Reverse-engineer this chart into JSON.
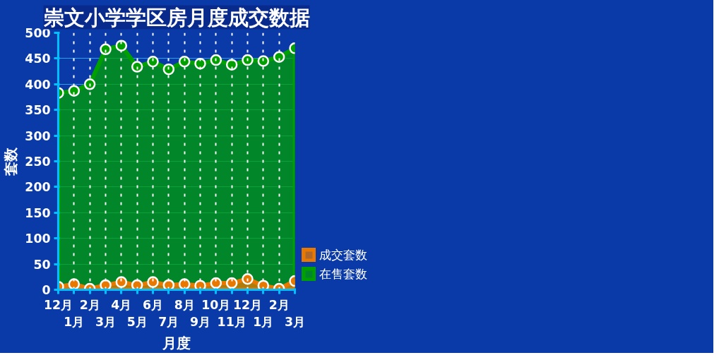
{
  "chart_data": {
    "type": "area",
    "title": "崇文小学学区房月度成交数据",
    "xlabel": "月度",
    "ylabel": "套数",
    "categories": [
      "12月",
      "1月",
      "2月",
      "3月",
      "4月",
      "5月",
      "6月",
      "7月",
      "8月",
      "9月",
      "10月",
      "11月",
      "12月",
      "1月",
      "2月",
      "3月"
    ],
    "series": [
      {
        "name": "成交套数",
        "color": "#e87800",
        "values": [
          6,
          11,
          2,
          9,
          15,
          9,
          15,
          9,
          11,
          8,
          13,
          13,
          21,
          8,
          2,
          17
        ]
      },
      {
        "name": "在售套数",
        "color": "#00a000",
        "values": [
          383,
          387,
          400,
          468,
          475,
          434,
          444,
          429,
          444,
          440,
          447,
          438,
          447,
          445,
          453,
          470
        ]
      }
    ],
    "ylim": [
      0,
      500
    ],
    "yticks": [
      0,
      50,
      100,
      150,
      200,
      250,
      300,
      350,
      400,
      450,
      500
    ],
    "grid": true,
    "legend": "right",
    "marker": "circle"
  }
}
